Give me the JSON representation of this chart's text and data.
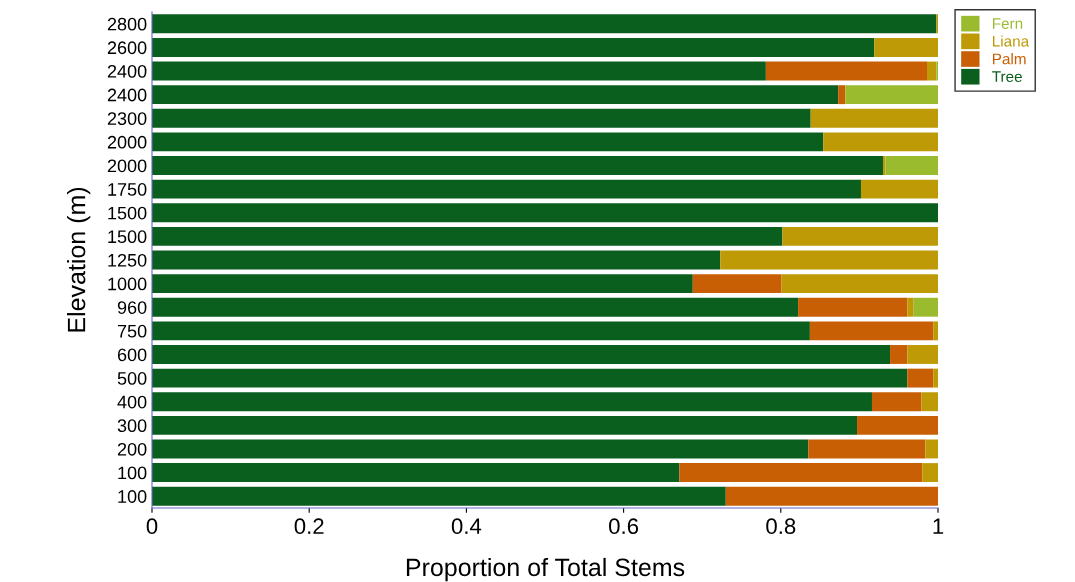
{
  "chart_data": {
    "type": "bar",
    "orientation": "horizontal",
    "stacked": true,
    "xlabel": "Proportion of Total Stems",
    "ylabel": "Elevation (m)",
    "categories": [
      "2800",
      "2600",
      "2400",
      "2400",
      "2300",
      "2000",
      "2000",
      "1750",
      "1500",
      "1500",
      "1250",
      "1000",
      "960",
      "750",
      "600",
      "500",
      "400",
      "300",
      "200",
      "100",
      "100"
    ],
    "series": [
      {
        "name": "Tree",
        "color": "#0a5e1e",
        "values": [
          0.998,
          0.919,
          0.781,
          0.873,
          0.838,
          0.854,
          0.93,
          0.902,
          1.0,
          0.802,
          0.723,
          0.688,
          0.822,
          0.837,
          0.939,
          0.961,
          0.916,
          0.897,
          0.835,
          0.671,
          0.73
        ]
      },
      {
        "name": "Palm",
        "color": "#c85f05",
        "values": [
          0,
          0,
          0.205,
          0.009,
          0,
          0,
          0,
          0,
          0,
          0,
          0,
          0.113,
          0.139,
          0.157,
          0.022,
          0.033,
          0.063,
          0.103,
          0.149,
          0.309,
          0.27
        ]
      },
      {
        "name": "Liana",
        "color": "#be9a07",
        "values": [
          0.002,
          0.081,
          0.012,
          0,
          0.162,
          0.146,
          0.003,
          0.098,
          0,
          0.198,
          0.277,
          0.199,
          0.008,
          0.006,
          0.039,
          0.006,
          0.021,
          0,
          0.016,
          0.02,
          0
        ]
      },
      {
        "name": "Fern",
        "color": "#9abb2e",
        "values": [
          0,
          0,
          0.002,
          0.118,
          0,
          0,
          0.067,
          0,
          0,
          0,
          0,
          0,
          0.031,
          0,
          0,
          0,
          0,
          0,
          0,
          0,
          0
        ]
      }
    ],
    "xlim": [
      0,
      1
    ],
    "xticks": [
      0,
      0.2,
      0.4,
      0.6,
      0.8,
      1
    ],
    "grid": false,
    "legend": "top right"
  }
}
